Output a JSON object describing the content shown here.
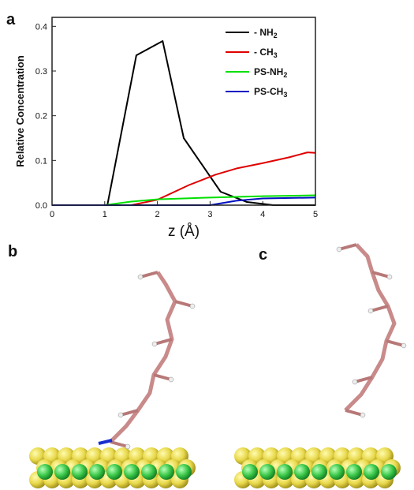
{
  "panel_labels": {
    "a": "a",
    "b": "b",
    "c": "c"
  },
  "chart_data": {
    "type": "line",
    "title": "",
    "xlabel": "z (Å)",
    "ylabel": "Relative Concentration",
    "xlim": [
      0,
      5
    ],
    "ylim": [
      0,
      0.42
    ],
    "xticks": [
      "0",
      "1",
      "2",
      "3",
      "4",
      "5"
    ],
    "yticks": [
      "0.0",
      "0.1",
      "0.2",
      "0.3",
      "0.4"
    ],
    "legend_position": "top-right",
    "series": [
      {
        "name": "- NH2",
        "name_main": "- NH",
        "name_sub": "2",
        "color": "#000000",
        "points": [
          [
            0.0,
            0.0
          ],
          [
            0.5,
            0.0
          ],
          [
            1.05,
            0.0
          ],
          [
            1.6,
            0.335
          ],
          [
            2.1,
            0.367
          ],
          [
            2.5,
            0.15
          ],
          [
            3.2,
            0.03
          ],
          [
            3.7,
            0.007
          ],
          [
            4.2,
            0.0
          ],
          [
            5.0,
            0.0
          ]
        ]
      },
      {
        "name": "- CH3",
        "name_main": "- CH",
        "name_sub": "3",
        "color": "#e00000",
        "points": [
          [
            1.5,
            0.0
          ],
          [
            2.0,
            0.012
          ],
          [
            2.6,
            0.045
          ],
          [
            3.1,
            0.068
          ],
          [
            3.5,
            0.082
          ],
          [
            4.0,
            0.094
          ],
          [
            4.5,
            0.107
          ],
          [
            4.85,
            0.118
          ],
          [
            5.0,
            0.117
          ]
        ]
      },
      {
        "name": "PS-NH2",
        "name_main": "PS-NH",
        "name_sub": "2",
        "color": "#00e000",
        "points": [
          [
            1.0,
            0.0
          ],
          [
            1.5,
            0.008
          ],
          [
            2.0,
            0.013
          ],
          [
            3.0,
            0.017
          ],
          [
            4.0,
            0.02
          ],
          [
            5.0,
            0.022
          ]
        ]
      },
      {
        "name": "PS-CH3",
        "name_main": "PS-CH",
        "name_sub": "3",
        "color": "#0010c0",
        "points": [
          [
            0.0,
            0.0
          ],
          [
            3.0,
            0.0
          ],
          [
            3.5,
            0.01
          ],
          [
            4.0,
            0.015
          ],
          [
            5.0,
            0.017
          ]
        ]
      }
    ]
  },
  "molecule_images": {
    "b": {
      "description_icon": "peptide-on-surface-with-nh2-anchor"
    },
    "c": {
      "description_icon": "peptide-on-surface-detached"
    }
  }
}
